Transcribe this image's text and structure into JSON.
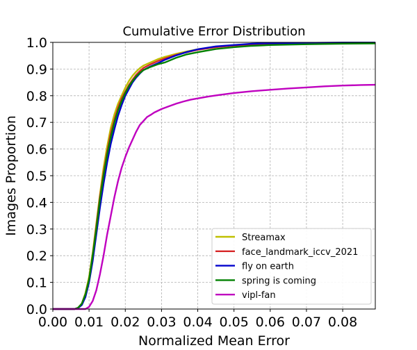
{
  "chart_data": {
    "type": "line",
    "title": "Cumulative Error Distribution",
    "xlabel": "Normalized Mean Error",
    "ylabel": "Images Proportion",
    "xlim": [
      0.0,
      0.089
    ],
    "ylim": [
      0.0,
      1.0
    ],
    "xticks": [
      0.0,
      0.01,
      0.02,
      0.03,
      0.04,
      0.05,
      0.06,
      0.07,
      0.08
    ],
    "xtick_labels": [
      "0.00",
      "0.01",
      "0.02",
      "0.03",
      "0.04",
      "0.05",
      "0.06",
      "0.07",
      "0.08"
    ],
    "yticks": [
      0.0,
      0.1,
      0.2,
      0.3,
      0.4,
      0.5,
      0.6,
      0.7,
      0.8,
      0.9,
      1.0
    ],
    "ytick_labels": [
      "0.0",
      "0.1",
      "0.2",
      "0.3",
      "0.4",
      "0.5",
      "0.6",
      "0.7",
      "0.8",
      "0.9",
      "1.0"
    ],
    "grid": true,
    "legend_position": "bottom-right",
    "series": [
      {
        "name": "Streamax",
        "color": "#bfbf00",
        "points": [
          [
            0.0,
            0.0
          ],
          [
            0.006,
            0.0
          ],
          [
            0.007,
            0.005
          ],
          [
            0.008,
            0.02
          ],
          [
            0.009,
            0.06
          ],
          [
            0.01,
            0.12
          ],
          [
            0.011,
            0.21
          ],
          [
            0.012,
            0.32
          ],
          [
            0.013,
            0.43
          ],
          [
            0.014,
            0.53
          ],
          [
            0.015,
            0.61
          ],
          [
            0.016,
            0.68
          ],
          [
            0.017,
            0.73
          ],
          [
            0.018,
            0.77
          ],
          [
            0.019,
            0.8
          ],
          [
            0.02,
            0.83
          ],
          [
            0.021,
            0.855
          ],
          [
            0.022,
            0.875
          ],
          [
            0.023,
            0.89
          ],
          [
            0.024,
            0.903
          ],
          [
            0.025,
            0.913
          ],
          [
            0.027,
            0.925
          ],
          [
            0.029,
            0.937
          ],
          [
            0.031,
            0.946
          ],
          [
            0.034,
            0.957
          ],
          [
            0.037,
            0.966
          ],
          [
            0.04,
            0.974
          ],
          [
            0.045,
            0.983
          ],
          [
            0.05,
            0.989
          ],
          [
            0.055,
            0.993
          ],
          [
            0.06,
            0.995
          ],
          [
            0.07,
            0.997
          ],
          [
            0.08,
            0.998
          ],
          [
            0.089,
            0.998
          ]
        ]
      },
      {
        "name": "face_landmark_iccv_2021",
        "color": "#d62728",
        "points": [
          [
            0.0,
            0.0
          ],
          [
            0.006,
            0.0
          ],
          [
            0.007,
            0.005
          ],
          [
            0.008,
            0.02
          ],
          [
            0.009,
            0.055
          ],
          [
            0.01,
            0.11
          ],
          [
            0.011,
            0.2
          ],
          [
            0.012,
            0.31
          ],
          [
            0.013,
            0.42
          ],
          [
            0.014,
            0.51
          ],
          [
            0.015,
            0.59
          ],
          [
            0.016,
            0.66
          ],
          [
            0.017,
            0.71
          ],
          [
            0.018,
            0.755
          ],
          [
            0.019,
            0.79
          ],
          [
            0.02,
            0.815
          ],
          [
            0.021,
            0.84
          ],
          [
            0.022,
            0.86
          ],
          [
            0.023,
            0.878
          ],
          [
            0.024,
            0.892
          ],
          [
            0.025,
            0.904
          ],
          [
            0.027,
            0.918
          ],
          [
            0.029,
            0.93
          ],
          [
            0.031,
            0.94
          ],
          [
            0.034,
            0.953
          ],
          [
            0.037,
            0.963
          ],
          [
            0.04,
            0.972
          ],
          [
            0.045,
            0.982
          ],
          [
            0.05,
            0.988
          ],
          [
            0.055,
            0.992
          ],
          [
            0.06,
            0.995
          ],
          [
            0.07,
            0.997
          ],
          [
            0.08,
            0.998
          ],
          [
            0.089,
            0.998
          ]
        ]
      },
      {
        "name": "fly on earth",
        "color": "#0000cc",
        "points": [
          [
            0.0,
            0.0
          ],
          [
            0.006,
            0.0
          ],
          [
            0.007,
            0.004
          ],
          [
            0.008,
            0.015
          ],
          [
            0.009,
            0.045
          ],
          [
            0.01,
            0.1
          ],
          [
            0.011,
            0.18
          ],
          [
            0.012,
            0.28
          ],
          [
            0.013,
            0.38
          ],
          [
            0.014,
            0.47
          ],
          [
            0.015,
            0.55
          ],
          [
            0.016,
            0.62
          ],
          [
            0.017,
            0.675
          ],
          [
            0.018,
            0.725
          ],
          [
            0.019,
            0.765
          ],
          [
            0.02,
            0.8
          ],
          [
            0.021,
            0.825
          ],
          [
            0.022,
            0.85
          ],
          [
            0.023,
            0.868
          ],
          [
            0.024,
            0.883
          ],
          [
            0.025,
            0.896
          ],
          [
            0.027,
            0.91
          ],
          [
            0.029,
            0.922
          ],
          [
            0.031,
            0.935
          ],
          [
            0.034,
            0.951
          ],
          [
            0.037,
            0.964
          ],
          [
            0.04,
            0.974
          ],
          [
            0.045,
            0.985
          ],
          [
            0.05,
            0.99
          ],
          [
            0.055,
            0.995
          ],
          [
            0.06,
            0.997
          ],
          [
            0.07,
            0.998
          ],
          [
            0.08,
            0.999
          ],
          [
            0.089,
            0.999
          ]
        ]
      },
      {
        "name": "spring is coming",
        "color": "#008000",
        "points": [
          [
            0.0,
            0.0
          ],
          [
            0.006,
            0.0
          ],
          [
            0.007,
            0.005
          ],
          [
            0.008,
            0.02
          ],
          [
            0.009,
            0.055
          ],
          [
            0.01,
            0.11
          ],
          [
            0.011,
            0.2
          ],
          [
            0.012,
            0.3
          ],
          [
            0.013,
            0.41
          ],
          [
            0.014,
            0.5
          ],
          [
            0.015,
            0.58
          ],
          [
            0.016,
            0.645
          ],
          [
            0.017,
            0.7
          ],
          [
            0.018,
            0.745
          ],
          [
            0.019,
            0.78
          ],
          [
            0.02,
            0.81
          ],
          [
            0.021,
            0.835
          ],
          [
            0.022,
            0.855
          ],
          [
            0.023,
            0.872
          ],
          [
            0.024,
            0.885
          ],
          [
            0.025,
            0.896
          ],
          [
            0.027,
            0.908
          ],
          [
            0.029,
            0.918
          ],
          [
            0.031,
            0.925
          ],
          [
            0.034,
            0.942
          ],
          [
            0.037,
            0.955
          ],
          [
            0.04,
            0.963
          ],
          [
            0.045,
            0.975
          ],
          [
            0.05,
            0.982
          ],
          [
            0.055,
            0.987
          ],
          [
            0.06,
            0.99
          ],
          [
            0.07,
            0.993
          ],
          [
            0.08,
            0.995
          ],
          [
            0.089,
            0.996
          ]
        ]
      },
      {
        "name": "vipl-fan",
        "color": "#bf00bf",
        "points": [
          [
            0.0,
            0.0
          ],
          [
            0.009,
            0.0
          ],
          [
            0.01,
            0.008
          ],
          [
            0.011,
            0.03
          ],
          [
            0.012,
            0.07
          ],
          [
            0.013,
            0.13
          ],
          [
            0.014,
            0.2
          ],
          [
            0.015,
            0.28
          ],
          [
            0.016,
            0.35
          ],
          [
            0.017,
            0.42
          ],
          [
            0.018,
            0.48
          ],
          [
            0.019,
            0.53
          ],
          [
            0.02,
            0.57
          ],
          [
            0.021,
            0.605
          ],
          [
            0.022,
            0.635
          ],
          [
            0.023,
            0.665
          ],
          [
            0.024,
            0.69
          ],
          [
            0.025,
            0.705
          ],
          [
            0.026,
            0.72
          ],
          [
            0.027,
            0.728
          ],
          [
            0.028,
            0.737
          ],
          [
            0.03,
            0.75
          ],
          [
            0.032,
            0.76
          ],
          [
            0.034,
            0.77
          ],
          [
            0.036,
            0.778
          ],
          [
            0.038,
            0.785
          ],
          [
            0.04,
            0.79
          ],
          [
            0.043,
            0.797
          ],
          [
            0.046,
            0.803
          ],
          [
            0.05,
            0.81
          ],
          [
            0.055,
            0.817
          ],
          [
            0.06,
            0.822
          ],
          [
            0.065,
            0.827
          ],
          [
            0.07,
            0.831
          ],
          [
            0.075,
            0.835
          ],
          [
            0.08,
            0.838
          ],
          [
            0.085,
            0.84
          ],
          [
            0.089,
            0.841
          ]
        ]
      }
    ]
  }
}
